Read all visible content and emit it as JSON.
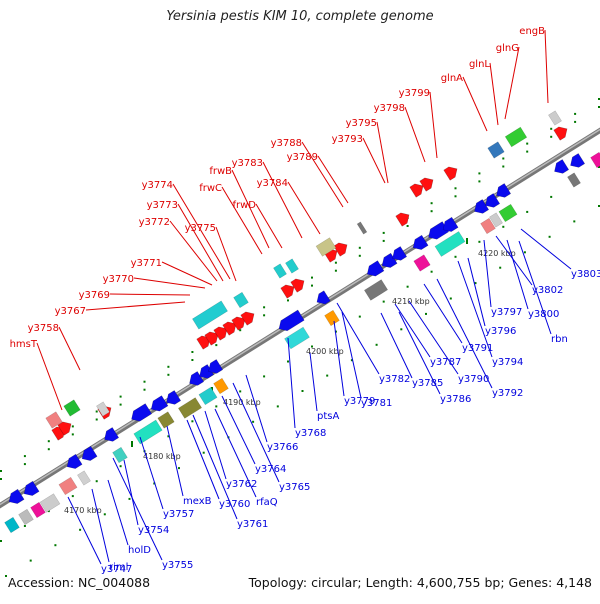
{
  "title": "Yersinia pestis KIM 10, complete genome",
  "footer": {
    "accession": "Accession: NC_004088",
    "summary": "Topology: circular; Length: 4,600,755 bp; Genes: 4,148"
  },
  "colors": {
    "forward_label": "#dd0000",
    "reverse_label": "#0000dd",
    "backbone": "#808080",
    "tick": "#007700"
  },
  "ticks": [
    "4170 kbp",
    "4180 kbp",
    "4190 kbp",
    "4200 kbp",
    "4210 kbp",
    "4220 kbp"
  ],
  "forward_genes": [
    "hmsT",
    "y3758",
    "y3767",
    "y3769",
    "y3770",
    "y3771",
    "y3772",
    "y3773",
    "y3774",
    "y3775",
    "frwC",
    "frwB",
    "frwD",
    "y3783",
    "y3784",
    "y3788",
    "y3789",
    "y3793",
    "y3795",
    "y3798",
    "y3799",
    "glnA",
    "glnL",
    "glnG",
    "engB"
  ],
  "reverse_genes": [
    "y3747",
    "riml",
    "holD",
    "y3755",
    "y3754",
    "y3757",
    "mexB",
    "y3760",
    "y3761",
    "y3762",
    "rfaQ",
    "y3764",
    "y3765",
    "y3766",
    "y3768",
    "ptsA",
    "y3779",
    "y3781",
    "y3782",
    "y3785",
    "y3786",
    "y3787",
    "y3790",
    "y3791",
    "y3792",
    "y3794",
    "y3796",
    "y3797",
    "y3800",
    "rbn",
    "y3802",
    "y3803"
  ]
}
